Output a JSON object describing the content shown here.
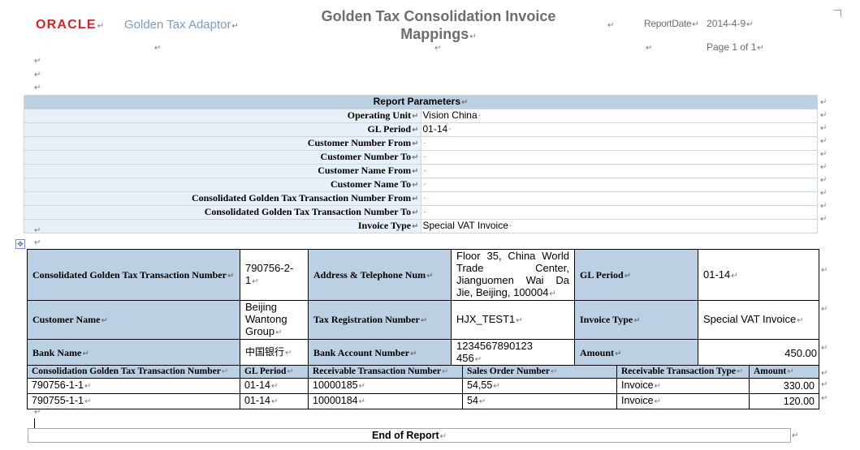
{
  "header": {
    "logo": "ORACLE",
    "app_name": "Golden Tax Adaptor",
    "title": "Golden Tax Consolidation Invoice Mappings",
    "report_date_label": "ReportDate",
    "report_date": "2014-4-9",
    "page_label": "Page 1 of 1"
  },
  "parameters": {
    "heading": "Report Parameters",
    "rows": [
      {
        "label": "Operating Unit",
        "value": "Vision China"
      },
      {
        "label": "GL Period",
        "value": "01-14"
      },
      {
        "label": "Customer Number From",
        "value": ""
      },
      {
        "label": "Customer Number To",
        "value": ""
      },
      {
        "label": "Customer Name From",
        "value": ""
      },
      {
        "label": "Customer Name To",
        "value": ""
      },
      {
        "label": "Consolidated Golden Tax Transaction Number From",
        "value": ""
      },
      {
        "label": "Consolidated Golden Tax Transaction Number To",
        "value": ""
      },
      {
        "label": "Invoice Type",
        "value": "Special VAT Invoice"
      }
    ]
  },
  "summary": {
    "consolidated_number_label": "Consolidated Golden Tax Transaction Number",
    "consolidated_number": "790756-2-1",
    "address_label": "Address & Telephone Num",
    "address": "Floor 35, China World Trade Center, Jianguomen Wai Da Jie, Beijing, 100004",
    "gl_period_label": "GL Period",
    "gl_period": "01-14",
    "customer_name_label": "Customer Name",
    "customer_name": "Beijing Wantong Group",
    "tax_reg_label": "Tax Registration Number",
    "tax_reg": "HJX_TEST1",
    "invoice_type_label": "Invoice Type",
    "invoice_type": "Special VAT Invoice",
    "bank_name_label": "Bank Name",
    "bank_name": "中国银行",
    "bank_account_label": "Bank Account Number",
    "bank_account": "1234567890123456",
    "amount_label": "Amount",
    "amount": "450.00"
  },
  "lines": {
    "columns": [
      "Consolidation Golden Tax Transaction Number",
      "GL Period",
      "Receivable Transaction Number",
      "Sales Order Number",
      "Receivable Transaction Type",
      "Amount"
    ],
    "rows": [
      [
        "790756-1-1",
        "01-14",
        "10000185",
        "54,55",
        "Invoice",
        "330.00"
      ],
      [
        "790755-1-1",
        "01-14",
        "10000184",
        "54",
        "Invoice",
        "120.00"
      ]
    ]
  },
  "footer": {
    "end_label": "End of Report"
  },
  "colors": {
    "logo_red": "#e21f26",
    "header_blue": "#bcd0e3",
    "label_light_blue": "#e8f0f8",
    "adaptor_blue": "#7f9bc4"
  }
}
